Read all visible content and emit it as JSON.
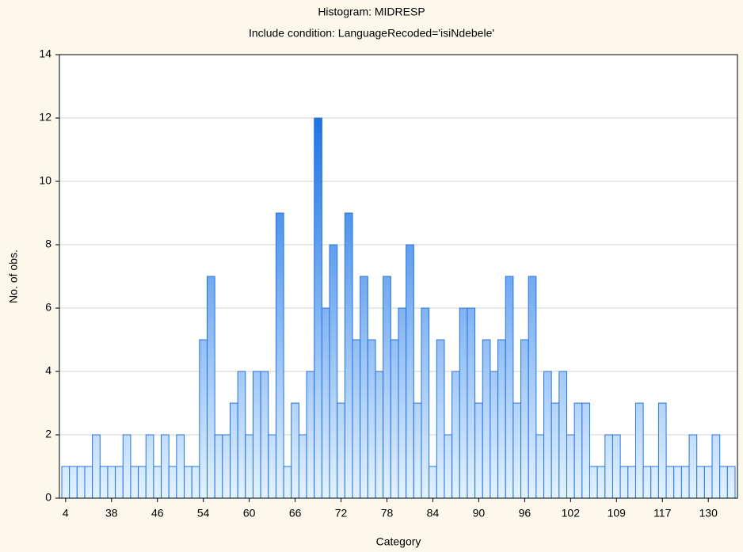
{
  "chart_data": {
    "type": "bar",
    "title": "Histogram: MIDRESP",
    "subtitle": "Include condition: LanguageRecoded='isiNdebele'",
    "x_label": "Category",
    "y_label": "No. of obs.",
    "categories": [
      "4",
      null,
      null,
      null,
      null,
      null,
      "38",
      null,
      null,
      null,
      null,
      null,
      "46",
      null,
      null,
      null,
      null,
      null,
      "54",
      null,
      null,
      null,
      null,
      null,
      "60",
      null,
      null,
      null,
      null,
      null,
      "66",
      null,
      null,
      null,
      null,
      null,
      "72",
      null,
      null,
      null,
      null,
      null,
      "78",
      null,
      null,
      null,
      null,
      null,
      "84",
      null,
      null,
      null,
      null,
      null,
      "90",
      null,
      null,
      null,
      null,
      null,
      "96",
      null,
      null,
      null,
      null,
      null,
      "102",
      null,
      null,
      null,
      null,
      null,
      "109",
      null,
      null,
      null,
      null,
      null,
      "117",
      null,
      null,
      null,
      null,
      null,
      "130",
      null,
      null,
      null
    ],
    "values": [
      1,
      1,
      1,
      1,
      2,
      1,
      1,
      1,
      2,
      1,
      1,
      2,
      1,
      2,
      1,
      2,
      1,
      1,
      5,
      7,
      2,
      2,
      3,
      4,
      2,
      4,
      4,
      2,
      9,
      1,
      3,
      2,
      4,
      12,
      6,
      8,
      3,
      9,
      5,
      7,
      5,
      4,
      7,
      5,
      6,
      8,
      3,
      6,
      1,
      5,
      2,
      4,
      6,
      6,
      3,
      5,
      4,
      5,
      7,
      3,
      5,
      7,
      2,
      4,
      3,
      4,
      2,
      3,
      3,
      1,
      1,
      2,
      2,
      1,
      1,
      3,
      1,
      1,
      3,
      1,
      1,
      1,
      2,
      1,
      1,
      2,
      1,
      1
    ],
    "color": "#1f74e4",
    "ylim": [
      0,
      14
    ],
    "yticks": [
      0,
      2,
      4,
      6,
      8,
      10,
      12,
      14
    ],
    "grid": true
  }
}
